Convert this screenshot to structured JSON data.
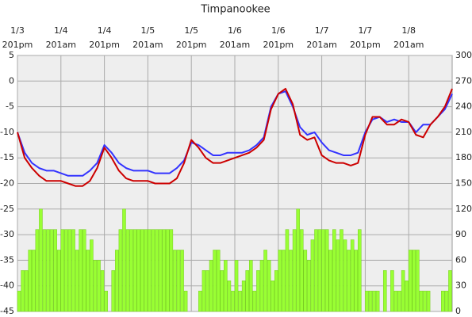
{
  "chart_data": {
    "type": "combo",
    "title": "Timpanookee",
    "xlim": [
      0,
      120
    ],
    "xticks": [
      {
        "value": 0,
        "label": "1/3\n201pm"
      },
      {
        "value": 12,
        "label": "1/4\n201am"
      },
      {
        "value": 24,
        "label": "1/4\n201pm"
      },
      {
        "value": 36,
        "label": "1/5\n201am"
      },
      {
        "value": 48,
        "label": "1/5\n201pm"
      },
      {
        "value": 60,
        "label": "1/6\n201am"
      },
      {
        "value": 72,
        "label": "1/6\n201pm"
      },
      {
        "value": 84,
        "label": "1/7\n201am"
      },
      {
        "value": 96,
        "label": "1/7\n201pm"
      },
      {
        "value": 108,
        "label": "1/8\n201am"
      }
    ],
    "ylim": [
      -45,
      5
    ],
    "yticks": [
      -45,
      -40,
      -35,
      -30,
      -25,
      -20,
      -15,
      -10,
      -5,
      0,
      5
    ],
    "y2lim": [
      0,
      300
    ],
    "y2ticks": [
      0,
      30,
      60,
      90,
      120,
      150,
      180,
      210,
      240,
      270,
      300
    ],
    "grid": true,
    "series": [
      {
        "type": "bar",
        "axis": "y2",
        "color": "#99ff33",
        "x": [
          0,
          1,
          2,
          3,
          4,
          5,
          6,
          7,
          8,
          9,
          10,
          11,
          12,
          13,
          14,
          15,
          16,
          17,
          18,
          19,
          20,
          21,
          22,
          23,
          24,
          25,
          26,
          27,
          28,
          29,
          30,
          31,
          32,
          33,
          34,
          35,
          36,
          37,
          38,
          39,
          40,
          41,
          42,
          43,
          44,
          45,
          46,
          47,
          48,
          49,
          50,
          51,
          52,
          53,
          54,
          55,
          56,
          57,
          58,
          59,
          60,
          61,
          62,
          63,
          64,
          65,
          66,
          67,
          68,
          69,
          70,
          71,
          72,
          73,
          74,
          75,
          76,
          77,
          78,
          79,
          80,
          81,
          82,
          83,
          84,
          85,
          86,
          87,
          88,
          89,
          90,
          91,
          92,
          93,
          94,
          95,
          96,
          97,
          98,
          99,
          100,
          101,
          102,
          103,
          104,
          105,
          106,
          107,
          108,
          109,
          110,
          111,
          112,
          113,
          114,
          115,
          116,
          117,
          118,
          119
        ],
        "values": [
          24,
          48,
          48,
          72,
          72,
          96,
          120,
          96,
          96,
          96,
          96,
          72,
          96,
          96,
          96,
          96,
          72,
          96,
          96,
          72,
          84,
          60,
          60,
          48,
          24,
          0,
          48,
          72,
          96,
          120,
          96,
          96,
          96,
          96,
          96,
          96,
          96,
          96,
          96,
          96,
          96,
          96,
          96,
          72,
          72,
          72,
          24,
          0,
          0,
          0,
          24,
          48,
          48,
          60,
          72,
          72,
          48,
          60,
          36,
          24,
          60,
          24,
          36,
          48,
          60,
          24,
          48,
          60,
          72,
          60,
          36,
          48,
          72,
          72,
          96,
          72,
          96,
          120,
          96,
          72,
          60,
          84,
          96,
          96,
          96,
          96,
          72,
          96,
          84,
          96,
          84,
          72,
          84,
          72,
          96,
          0,
          24,
          24,
          24,
          24,
          0,
          48,
          0,
          48,
          24,
          24,
          48,
          36,
          72,
          72,
          72,
          24,
          24,
          24,
          0,
          0,
          0,
          24,
          24,
          48
        ]
      },
      {
        "type": "line",
        "color": "#3333ff",
        "x": [
          0,
          2,
          4,
          6,
          8,
          10,
          12,
          14,
          16,
          18,
          20,
          22,
          24,
          26,
          28,
          30,
          32,
          34,
          36,
          38,
          40,
          42,
          44,
          46,
          48,
          50,
          52,
          54,
          56,
          58,
          60,
          62,
          64,
          66,
          68,
          70,
          72,
          74,
          76,
          78,
          80,
          82,
          84,
          86,
          88,
          90,
          92,
          94,
          96,
          98,
          100,
          102,
          104,
          106,
          108,
          110,
          112,
          114,
          116,
          118,
          120
        ],
        "values": [
          -10,
          -14,
          -16,
          -17,
          -17.5,
          -17.5,
          -18,
          -18.5,
          -18.5,
          -18.5,
          -17.5,
          -16,
          -12.5,
          -14,
          -16,
          -17,
          -17.5,
          -17.5,
          -17.5,
          -18,
          -18,
          -18,
          -17,
          -15.5,
          -12,
          -12.5,
          -13.5,
          -14.5,
          -14.5,
          -14,
          -14,
          -14,
          -13.5,
          -12.5,
          -11,
          -5,
          -2.5,
          -2,
          -5,
          -9,
          -10.5,
          -10,
          -12,
          -13.5,
          -14,
          -14.5,
          -14.5,
          -14,
          -10,
          -7.5,
          -7,
          -8,
          -7.5,
          -8,
          -8,
          -10,
          -8.5,
          -8.5,
          -7,
          -5.5,
          -2.5
        ]
      },
      {
        "type": "line",
        "color": "#cc0000",
        "x": [
          0,
          2,
          4,
          6,
          8,
          10,
          12,
          14,
          16,
          18,
          20,
          22,
          24,
          26,
          28,
          30,
          32,
          34,
          36,
          38,
          40,
          42,
          44,
          46,
          48,
          50,
          52,
          54,
          56,
          58,
          60,
          62,
          64,
          66,
          68,
          70,
          72,
          74,
          76,
          78,
          80,
          82,
          84,
          86,
          88,
          90,
          92,
          94,
          96,
          98,
          100,
          102,
          104,
          106,
          108,
          110,
          112,
          114,
          116,
          118,
          120
        ],
        "values": [
          -10,
          -15,
          -17,
          -18.5,
          -19.5,
          -19.5,
          -19.5,
          -20,
          -20.5,
          -20.5,
          -19.5,
          -17,
          -13,
          -15,
          -17.5,
          -19,
          -19.5,
          -19.5,
          -19.5,
          -20,
          -20,
          -20,
          -19,
          -16,
          -11.5,
          -13,
          -15,
          -16,
          -16,
          -15.5,
          -15,
          -14.5,
          -14,
          -13,
          -11.5,
          -5.5,
          -2.5,
          -1.5,
          -4.5,
          -10.5,
          -11.5,
          -11,
          -14.5,
          -15.5,
          -16,
          -16,
          -16.5,
          -16,
          -10.5,
          -7,
          -7,
          -8.5,
          -8.5,
          -7.5,
          -8,
          -10.5,
          -11,
          -8.5,
          -7,
          -5,
          -1.5
        ]
      }
    ]
  }
}
